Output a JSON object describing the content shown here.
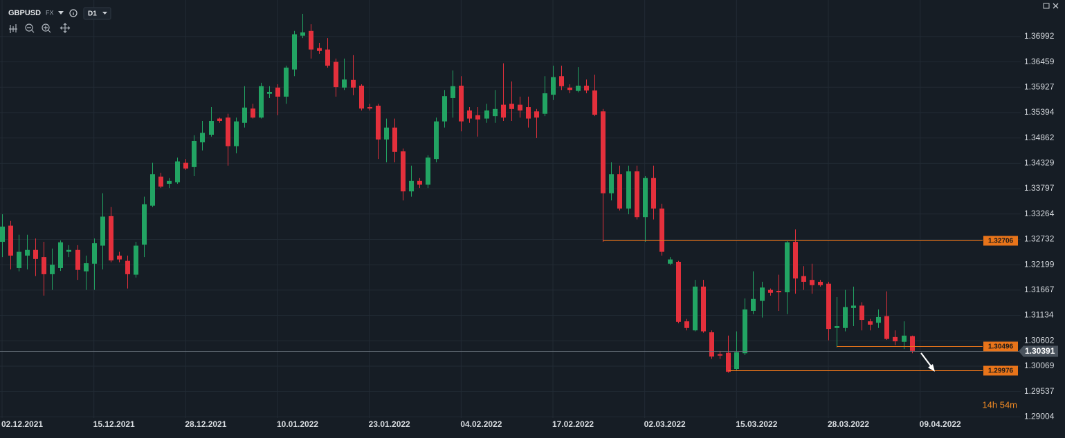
{
  "chart_data": {
    "type": "candlestick",
    "symbol": "GBPUSD",
    "market": "FX",
    "timeframe": "D1",
    "up_color": "#22a463",
    "down_color": "#e4303c",
    "level_color": "#e8741a",
    "grid": true,
    "open": [
      1.3268,
      1.3302,
      1.3213,
      1.3239,
      1.3251,
      1.3236,
      1.32,
      1.3213,
      1.3247,
      1.3251,
      1.3206,
      1.3222,
      1.326,
      1.3322,
      1.3239,
      1.3228,
      1.3199,
      1.3262,
      1.3344,
      1.3405,
      1.339,
      1.3393,
      1.3434,
      1.3425,
      1.3477,
      1.3493,
      1.3527,
      1.3529,
      1.3469,
      1.3518,
      1.3548,
      1.3529,
      1.3579,
      1.3592,
      1.3573,
      1.363,
      1.3701,
      1.3711,
      1.3675,
      1.3672,
      1.3646,
      1.3592,
      1.3608,
      1.3596,
      1.3551,
      1.3554,
      1.3483,
      1.3508,
      1.3458,
      1.3374,
      1.3396,
      1.3388,
      1.3442,
      1.3521,
      1.357,
      1.3596,
      1.3544,
      1.3534,
      1.3527,
      1.3532,
      1.3556,
      1.3558,
      1.3556,
      1.3551,
      1.3542,
      1.3537,
      1.3577,
      1.3616,
      1.3592,
      1.3585,
      1.3596,
      1.3586,
      1.3542,
      1.337,
      1.341,
      1.3338,
      1.3416,
      1.332,
      1.3402,
      1.3338,
      1.3222,
      1.3226,
      1.3101,
      1.3082,
      1.3174,
      1.3078,
      1.3032,
      1.3035,
      1.3001,
      1.3034,
      1.3123,
      1.3144,
      1.3167,
      1.3165,
      1.3162,
      1.3268,
      1.3196,
      1.3188,
      1.3184,
      1.318,
      1.3087,
      1.3087,
      1.3129,
      1.3134,
      1.3101,
      1.3098,
      1.3112,
      1.3068,
      1.3058,
      1.307
    ],
    "high": [
      1.3326,
      1.3312,
      1.3283,
      1.3283,
      1.3275,
      1.3268,
      1.3254,
      1.3271,
      1.3261,
      1.3261,
      1.3239,
      1.3275,
      1.337,
      1.3341,
      1.3247,
      1.3239,
      1.3268,
      1.3363,
      1.3434,
      1.3413,
      1.3402,
      1.3445,
      1.3442,
      1.3492,
      1.3522,
      1.3551,
      1.3529,
      1.3537,
      1.3529,
      1.3595,
      1.3558,
      1.3602,
      1.3595,
      1.3599,
      1.3638,
      1.3711,
      1.3747,
      1.3725,
      1.3686,
      1.3696,
      1.3653,
      1.3653,
      1.366,
      1.3599,
      1.3558,
      1.3558,
      1.3527,
      1.3527,
      1.3464,
      1.3428,
      1.3402,
      1.345,
      1.3529,
      1.3587,
      1.3628,
      1.3616,
      1.3551,
      1.3551,
      1.3558,
      1.3587,
      1.3643,
      1.3605,
      1.3573,
      1.3573,
      1.3547,
      1.3616,
      1.3638,
      1.3638,
      1.3599,
      1.3635,
      1.3609,
      1.3619,
      1.3547,
      1.3435,
      1.3428,
      1.3428,
      1.3428,
      1.3406,
      1.3428,
      1.3348,
      1.3236,
      1.3228,
      1.3106,
      1.3188,
      1.3188,
      1.3082,
      1.3039,
      1.3071,
      1.308,
      1.3149,
      1.3206,
      1.3184,
      1.317,
      1.3199,
      1.3271,
      1.3294,
      1.3217,
      1.3222,
      1.3188,
      1.3184,
      1.3152,
      1.3167,
      1.3174,
      1.3141,
      1.3106,
      1.3126,
      1.3164,
      1.3082,
      1.3101,
      1.3071
    ],
    "low": [
      1.3236,
      1.321,
      1.3206,
      1.321,
      1.3196,
      1.3155,
      1.3167,
      1.3207,
      1.3236,
      1.3188,
      1.3167,
      1.3167,
      1.321,
      1.3225,
      1.3225,
      1.317,
      1.3193,
      1.3236,
      1.3341,
      1.3381,
      1.3381,
      1.339,
      1.3419,
      1.3406,
      1.346,
      1.3489,
      1.3518,
      1.3428,
      1.3454,
      1.3508,
      1.3527,
      1.3527,
      1.357,
      1.3534,
      1.3558,
      1.3616,
      1.3696,
      1.3653,
      1.3663,
      1.3634,
      1.3573,
      1.3587,
      1.3576,
      1.3544,
      1.3544,
      1.3442,
      1.3435,
      1.3435,
      1.3355,
      1.3363,
      1.3381,
      1.3381,
      1.3435,
      1.3508,
      1.3529,
      1.35,
      1.3518,
      1.3489,
      1.3518,
      1.3518,
      1.3522,
      1.3522,
      1.3529,
      1.3508,
      1.3486,
      1.3532,
      1.3566,
      1.3587,
      1.358,
      1.3582,
      1.358,
      1.3532,
      1.3268,
      1.3355,
      1.3334,
      1.3326,
      1.3315,
      1.3268,
      1.3315,
      1.3239,
      1.3219,
      1.3097,
      1.3082,
      1.308,
      1.3077,
      1.3022,
      1.3022,
      1.2993,
      1.2998,
      1.303,
      1.3116,
      1.3109,
      1.3155,
      1.3123,
      1.3116,
      1.3159,
      1.3167,
      1.3159,
      1.3174,
      1.3061,
      1.3046,
      1.308,
      1.3091,
      1.3082,
      1.3082,
      1.3087,
      1.3062,
      1.3051,
      1.3043,
      1.3034
    ],
    "close": [
      1.33,
      1.3239,
      1.3247,
      1.3251,
      1.3232,
      1.32,
      1.322,
      1.3267,
      1.3251,
      1.3209,
      1.3223,
      1.3265,
      1.3321,
      1.3229,
      1.3231,
      1.32,
      1.326,
      1.3347,
      1.341,
      1.3384,
      1.3396,
      1.3437,
      1.3422,
      1.348,
      1.3497,
      1.3522,
      1.3522,
      1.3469,
      1.3521,
      1.355,
      1.3529,
      1.3595,
      1.3583,
      1.3573,
      1.3634,
      1.3704,
      1.3708,
      1.3672,
      1.3669,
      1.3638,
      1.3593,
      1.3609,
      1.3592,
      1.3548,
      1.3548,
      1.3483,
      1.3508,
      1.3457,
      1.3374,
      1.3396,
      1.3388,
      1.3445,
      1.3521,
      1.3574,
      1.3595,
      1.3521,
      1.3527,
      1.3525,
      1.3544,
      1.3547,
      1.3529,
      1.3547,
      1.3544,
      1.3527,
      1.3529,
      1.358,
      1.3614,
      1.3595,
      1.3587,
      1.3596,
      1.3586,
      1.3535,
      1.337,
      1.341,
      1.3338,
      1.3416,
      1.332,
      1.3402,
      1.3338,
      1.3247,
      1.3231,
      1.31,
      1.3087,
      1.3174,
      1.308,
      1.3027,
      1.3029,
      1.2995,
      1.3036,
      1.3126,
      1.3148,
      1.3172,
      1.3161,
      1.3162,
      1.3267,
      1.3191,
      1.3184,
      1.3177,
      1.3177,
      1.3085,
      1.3091,
      1.3131,
      1.3134,
      1.3104,
      1.3094,
      1.311,
      1.3064,
      1.3059,
      1.3071,
      1.3039
    ],
    "xlim": [
      -0.25,
      122.05
    ],
    "xticks": [
      {
        "value": 0,
        "label": "02.12.2021"
      },
      {
        "value": 11,
        "label": "15.12.2021"
      },
      {
        "value": 22,
        "label": "28.12.2021"
      },
      {
        "value": 33,
        "label": "10.01.2022"
      },
      {
        "value": 44,
        "label": "23.01.2022"
      },
      {
        "value": 55,
        "label": "04.02.2022"
      },
      {
        "value": 66,
        "label": "17.02.2022"
      },
      {
        "value": 77,
        "label": "02.03.2022"
      },
      {
        "value": 88,
        "label": "15.03.2022"
      },
      {
        "value": 99,
        "label": "28.03.2022"
      },
      {
        "value": 110,
        "label": "09.04.2022"
      }
    ],
    "ylim": [
      1.2898,
      1.3776
    ],
    "yticks": [
      1.36992,
      1.36459,
      1.35927,
      1.35394,
      1.34862,
      1.34329,
      1.33797,
      1.33264,
      1.32732,
      1.32199,
      1.31667,
      1.31134,
      1.30602,
      1.30069,
      1.29537,
      1.29004
    ],
    "levels": [
      {
        "value": 1.32706,
        "from": 72
      },
      {
        "value": 1.30496,
        "from": 100
      },
      {
        "value": 1.29976,
        "from": 87
      }
    ],
    "current_price": 1.30391,
    "countdown": "14h 54m"
  }
}
